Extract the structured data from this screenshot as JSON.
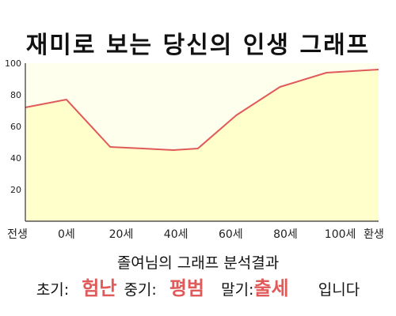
{
  "title": "재미로 보는 당신의 인생 그래프",
  "chart_data": {
    "type": "area",
    "x_labels": [
      "전생",
      "0세",
      "20세",
      "40세",
      "60세",
      "80세",
      "100세",
      "환생"
    ],
    "y_ticks": [
      20,
      40,
      60,
      80,
      100
    ],
    "ylim": [
      0,
      100
    ],
    "grid": false,
    "series": [
      {
        "x": [
          -15,
          0,
          16,
          28,
          39,
          48,
          62,
          78,
          95,
          114
        ],
        "values": [
          72,
          77,
          47,
          46,
          45,
          46,
          67,
          85,
          94,
          96
        ]
      }
    ],
    "x_at_labels": [
      -15,
      0,
      20,
      40,
      60,
      80,
      100,
      114
    ],
    "fill_color": "#ffffcc",
    "line_color": "#e05a5a",
    "plot_bg": "#ffffee"
  },
  "summary": {
    "title": "졸여님의 그래프 분석결과",
    "early_label": "초기:",
    "early_value": "험난",
    "middle_label": "중기:",
    "middle_value": "평범",
    "late_label": "말기:",
    "late_value": "출세",
    "ending": "입니다",
    "value_color": "#e05a5a"
  }
}
